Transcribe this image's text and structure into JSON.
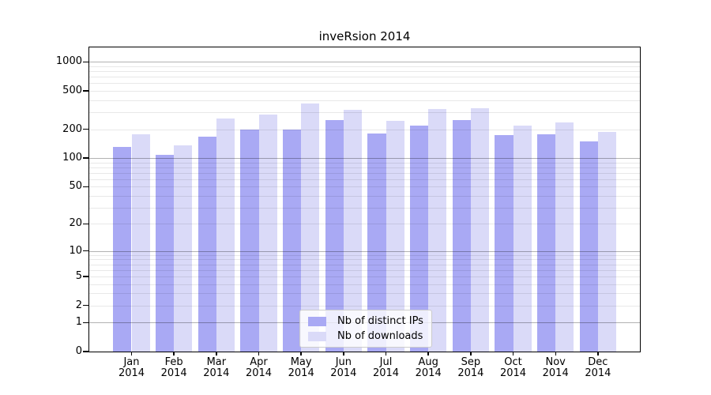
{
  "chart_data": {
    "type": "bar",
    "title": "inveRsion 2014",
    "months": [
      "Jan",
      "Feb",
      "Mar",
      "Apr",
      "May",
      "Jun",
      "Jul",
      "Aug",
      "Sep",
      "Oct",
      "Nov",
      "Dec"
    ],
    "year": "2014",
    "categories": [
      "Jan 2014",
      "Feb 2014",
      "Mar 2014",
      "Apr 2014",
      "May 2014",
      "Jun 2014",
      "Jul 2014",
      "Aug 2014",
      "Sep 2014",
      "Oct 2014",
      "Nov 2014",
      "Dec 2014"
    ],
    "series": [
      {
        "name": "Nb of distinct IPs",
        "color": "#a9a9f4",
        "values": [
          130,
          108,
          168,
          199,
          200,
          247,
          179,
          220,
          248,
          174,
          177,
          149
        ]
      },
      {
        "name": "Nb of downloads",
        "color": "#dadaf8",
        "values": [
          178,
          135,
          258,
          284,
          370,
          318,
          242,
          324,
          330,
          219,
          235,
          186
        ]
      }
    ],
    "yscale": "log(1+v)",
    "y_tick_labels": [
      "1000",
      "500",
      "200",
      "100",
      "50",
      "20",
      "10",
      "5",
      "2",
      "1",
      "0"
    ],
    "y_tick_values": [
      1000,
      500,
      200,
      100,
      50,
      20,
      10,
      5,
      2,
      1,
      0
    ],
    "ylim": [
      0,
      1412
    ],
    "xlabel": "",
    "ylabel": "",
    "grid": true,
    "legend_position": "lower center",
    "colors": {
      "grid_major": "#b3b3b3",
      "grid_minor": "#e8e8e8",
      "axis": "#000000",
      "background": "#ffffff"
    }
  }
}
